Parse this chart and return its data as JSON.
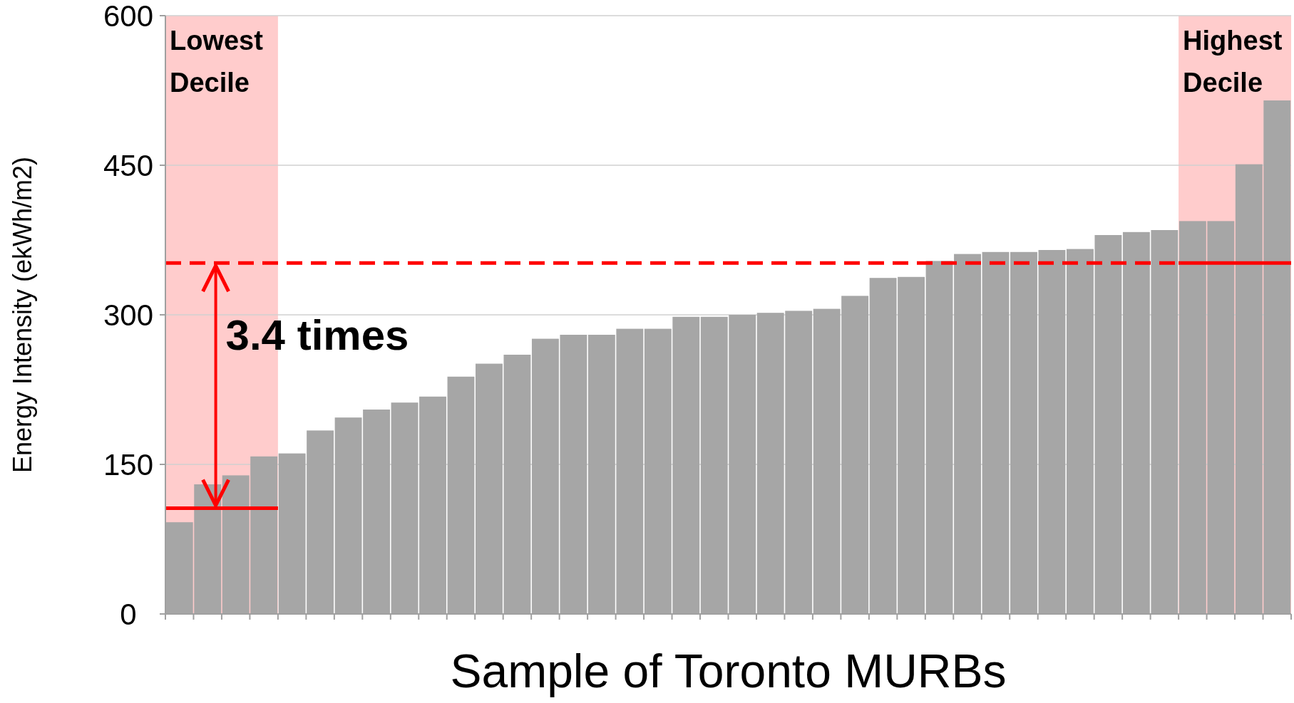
{
  "chart_data": {
    "type": "bar",
    "xlabel": "Sample of Toronto MURBs",
    "ylabel": "Energy Intensity (ekWh/m2)",
    "categories": [
      null,
      null,
      null,
      null,
      null,
      null,
      null,
      null,
      null,
      null,
      null,
      null,
      null,
      null,
      null,
      null,
      null,
      null,
      null,
      null,
      null,
      null,
      null,
      null,
      null,
      null,
      null,
      null,
      null,
      null,
      null,
      null,
      null,
      null,
      null,
      null,
      null,
      null,
      null,
      null
    ],
    "values": [
      92,
      130,
      139,
      158,
      161,
      184,
      197,
      205,
      212,
      218,
      238,
      251,
      260,
      276,
      280,
      280,
      286,
      286,
      298,
      298,
      300,
      302,
      304,
      306,
      319,
      337,
      338,
      354,
      361,
      363,
      363,
      365,
      366,
      380,
      383,
      385,
      394,
      394,
      451,
      515
    ],
    "color": "#a6a6a6",
    "ylim": [
      0,
      600
    ],
    "yticks": [
      0,
      150,
      300,
      450,
      600
    ],
    "grid": "y",
    "tick_labels": "y",
    "ref_lines": [
      {
        "axis": "y",
        "value": 106,
        "color": "#ff0000",
        "line_style": "solid"
      },
      {
        "axis": "y",
        "value": 352,
        "color": "#ff0000",
        "line_style": "dashed"
      },
      {
        "axis": "y",
        "value": 352,
        "color": "#ff0000",
        "line_style": "solid"
      }
    ],
    "annotations": [
      "Lowest Decile",
      "Highest Decile",
      "3.4 times"
    ]
  }
}
